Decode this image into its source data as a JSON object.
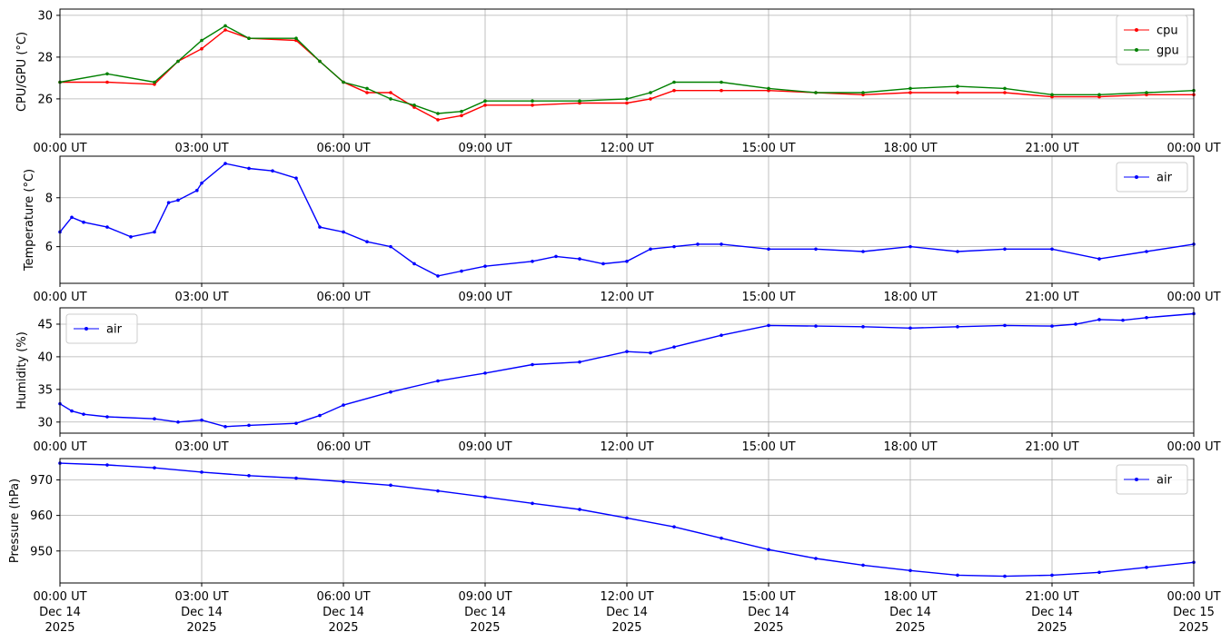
{
  "x_ticks": [
    "00:00 UT",
    "03:00 UT",
    "06:00 UT",
    "09:00 UT",
    "12:00 UT",
    "15:00 UT",
    "18:00 UT",
    "21:00 UT",
    "00:00 UT"
  ],
  "x_ticks_bottom_date": [
    "Dec 14",
    "Dec 14",
    "Dec 14",
    "Dec 14",
    "Dec 14",
    "Dec 14",
    "Dec 14",
    "Dec 14",
    "Dec 15"
  ],
  "x_ticks_bottom_year": [
    "2025",
    "2025",
    "2025",
    "2025",
    "2025",
    "2025",
    "2025",
    "2025",
    "2025"
  ],
  "colors": {
    "cpu": "#ff0000",
    "gpu": "#008000",
    "air": "#0000ff",
    "grid": "#b0b0b0"
  },
  "chart_data": [
    {
      "type": "line",
      "ylabel": "CPU/GPU (°C)",
      "ylim": [
        24.3,
        30.3
      ],
      "yticks": [
        26,
        28,
        30
      ],
      "xlim": [
        0,
        24
      ],
      "grid": true,
      "legend_position": "top-right",
      "x": [
        0,
        1,
        2,
        2.5,
        3,
        3.5,
        4,
        5,
        5.5,
        6,
        6.5,
        7,
        7.5,
        8,
        8.5,
        9,
        10,
        11,
        12,
        12.5,
        13,
        14,
        15,
        16,
        17,
        18,
        19,
        20,
        21,
        22,
        23,
        24
      ],
      "series": [
        {
          "name": "cpu",
          "values": [
            26.8,
            26.8,
            26.7,
            27.8,
            28.4,
            29.3,
            28.9,
            28.8,
            27.8,
            26.8,
            26.3,
            26.3,
            25.6,
            25.0,
            25.2,
            25.7,
            25.7,
            25.8,
            25.8,
            26.0,
            26.4,
            26.4,
            26.4,
            26.3,
            26.2,
            26.3,
            26.3,
            26.3,
            26.1,
            26.1,
            26.2,
            26.2
          ]
        },
        {
          "name": "gpu",
          "values": [
            26.8,
            27.2,
            26.8,
            27.8,
            28.8,
            29.5,
            28.9,
            28.9,
            27.8,
            26.8,
            26.5,
            26.0,
            25.7,
            25.3,
            25.4,
            25.9,
            25.9,
            25.9,
            26.0,
            26.3,
            26.8,
            26.8,
            26.5,
            26.3,
            26.3,
            26.5,
            26.6,
            26.5,
            26.2,
            26.2,
            26.3,
            26.4
          ]
        }
      ]
    },
    {
      "type": "line",
      "ylabel": "Temperature (°C)",
      "ylim": [
        4.5,
        9.7
      ],
      "yticks": [
        6,
        8
      ],
      "xlim": [
        0,
        24
      ],
      "grid": true,
      "legend_position": "top-right",
      "x": [
        0,
        0.25,
        0.5,
        1,
        1.5,
        2,
        2.3,
        2.5,
        2.9,
        3.0,
        3.5,
        4,
        4.5,
        5,
        5.5,
        6,
        6.5,
        7,
        7.5,
        8,
        8.5,
        9,
        10,
        10.5,
        11,
        11.5,
        12,
        12.5,
        13,
        13.5,
        14,
        15,
        16,
        17,
        18,
        19,
        20,
        21,
        22,
        23,
        24
      ],
      "series": [
        {
          "name": "air",
          "values": [
            6.6,
            7.2,
            7.0,
            6.8,
            6.4,
            6.6,
            7.8,
            7.9,
            8.3,
            8.6,
            9.4,
            9.2,
            9.1,
            8.8,
            6.8,
            6.6,
            6.2,
            6.0,
            5.3,
            4.8,
            5.0,
            5.2,
            5.4,
            5.6,
            5.5,
            5.3,
            5.4,
            5.9,
            6.0,
            6.1,
            6.1,
            5.9,
            5.9,
            5.8,
            6.0,
            5.8,
            5.9,
            5.9,
            5.5,
            5.8,
            6.1
          ]
        }
      ]
    },
    {
      "type": "line",
      "ylabel": "Humidity (%)",
      "ylim": [
        28.3,
        47.5
      ],
      "yticks": [
        30,
        35,
        40,
        45
      ],
      "xlim": [
        0,
        24
      ],
      "grid": true,
      "legend_position": "top-left",
      "x": [
        0,
        0.25,
        0.5,
        1,
        2,
        2.5,
        3,
        3.5,
        4,
        5,
        5.5,
        6,
        7,
        8,
        9,
        10,
        11,
        12,
        12.5,
        13,
        14,
        15,
        16,
        17,
        18,
        19,
        20,
        21,
        21.5,
        22,
        22.5,
        23,
        24
      ],
      "series": [
        {
          "name": "air",
          "values": [
            32.8,
            31.7,
            31.2,
            30.8,
            30.5,
            30.0,
            30.3,
            29.3,
            29.5,
            29.8,
            31.0,
            32.6,
            34.6,
            36.3,
            37.5,
            38.8,
            39.2,
            40.8,
            40.6,
            41.5,
            43.3,
            44.8,
            44.7,
            44.6,
            44.4,
            44.6,
            44.8,
            44.7,
            45.0,
            45.7,
            45.6,
            46.0,
            46.6
          ]
        }
      ]
    },
    {
      "type": "line",
      "ylabel": "Pressure (hPa)",
      "ylim": [
        941,
        976
      ],
      "yticks": [
        950,
        960,
        970
      ],
      "xlim": [
        0,
        24
      ],
      "grid": true,
      "legend_position": "top-right",
      "x": [
        0,
        1,
        2,
        3,
        4,
        5,
        6,
        7,
        8,
        9,
        10,
        11,
        12,
        13,
        14,
        15,
        16,
        17,
        18,
        19,
        20,
        21,
        22,
        23,
        24
      ],
      "series": [
        {
          "name": "air",
          "values": [
            974.7,
            974.2,
            973.4,
            972.2,
            971.2,
            970.5,
            969.5,
            968.5,
            966.9,
            965.2,
            963.4,
            961.7,
            959.3,
            956.8,
            953.6,
            950.4,
            947.9,
            946.0,
            944.5,
            943.2,
            942.9,
            943.2,
            944.0,
            945.4,
            946.8
          ]
        }
      ]
    }
  ]
}
